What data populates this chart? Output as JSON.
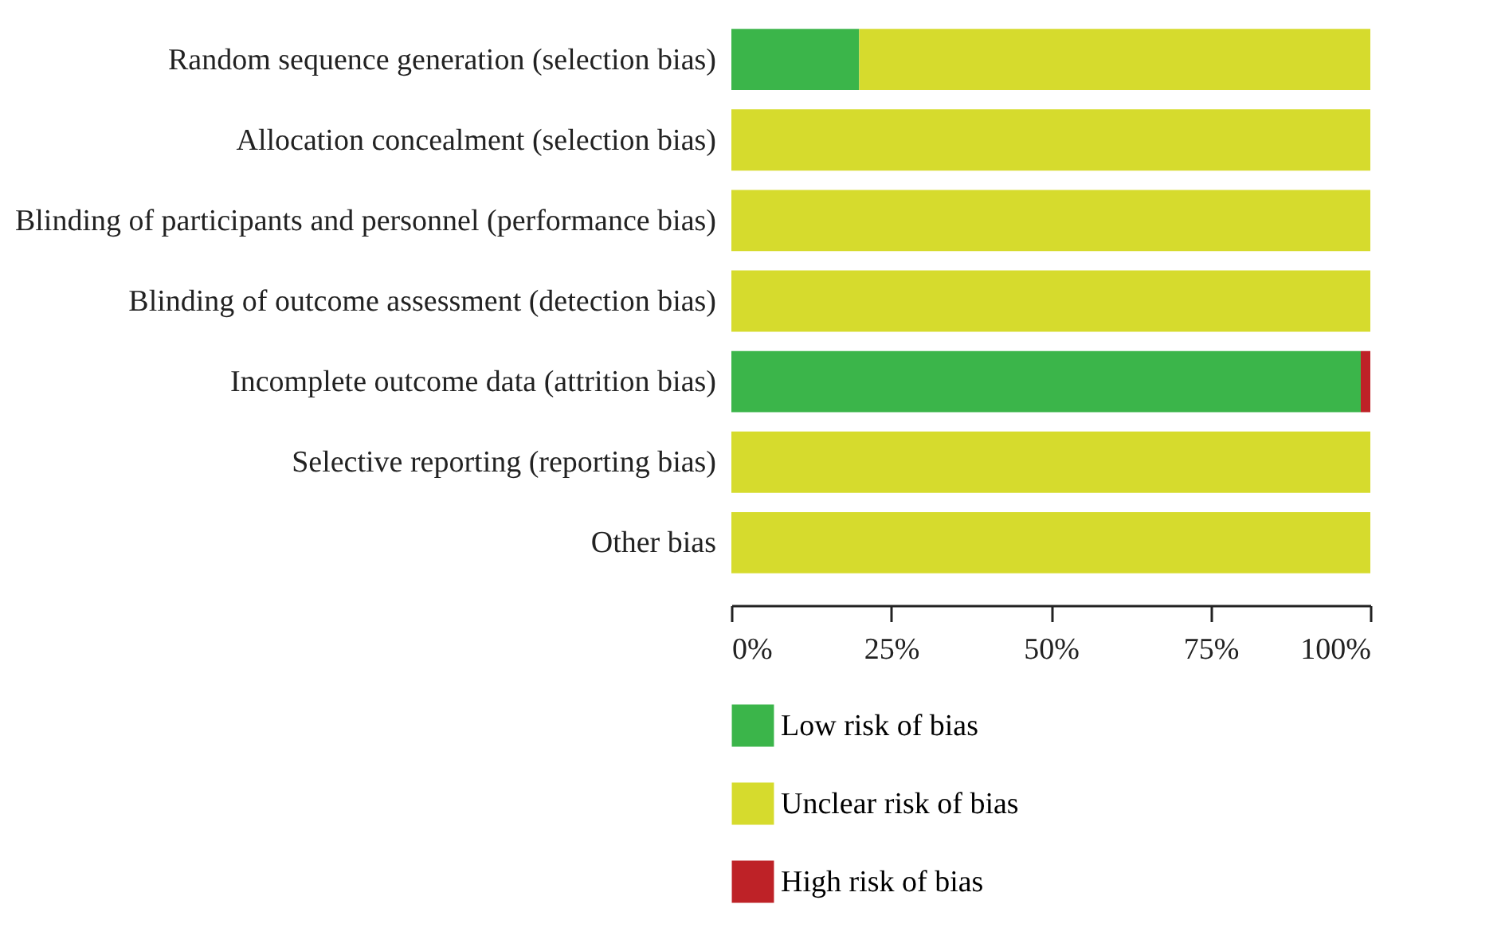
{
  "chart_data": {
    "type": "bar",
    "orientation": "horizontal",
    "stacked": true,
    "categories": [
      "Random sequence generation (selection bias)",
      "Allocation concealment (selection bias)",
      "Blinding of participants and personnel (performance bias)",
      "Blinding of outcome assessment (detection bias)",
      "Incomplete outcome data (attrition bias)",
      "Selective reporting (reporting bias)",
      "Other bias"
    ],
    "series": [
      {
        "name": "Low risk of bias",
        "color": "#3bb54a",
        "values": [
          20,
          0,
          0,
          0,
          98.5,
          0,
          0
        ]
      },
      {
        "name": "Unclear risk of bias",
        "color": "#d6db2d",
        "values": [
          80,
          100,
          100,
          100,
          0,
          100,
          100
        ]
      },
      {
        "name": "High risk of bias",
        "color": "#be2227",
        "values": [
          0,
          0,
          0,
          0,
          1.5,
          0,
          0
        ]
      }
    ],
    "xlim": [
      0,
      100
    ],
    "xticks": [
      {
        "value": 0,
        "label": "0%"
      },
      {
        "value": 25,
        "label": "25%"
      },
      {
        "value": 50,
        "label": "50%"
      },
      {
        "value": 75,
        "label": "75%"
      },
      {
        "value": 100,
        "label": "100%"
      }
    ],
    "grid": false,
    "legend": "bottom left"
  }
}
